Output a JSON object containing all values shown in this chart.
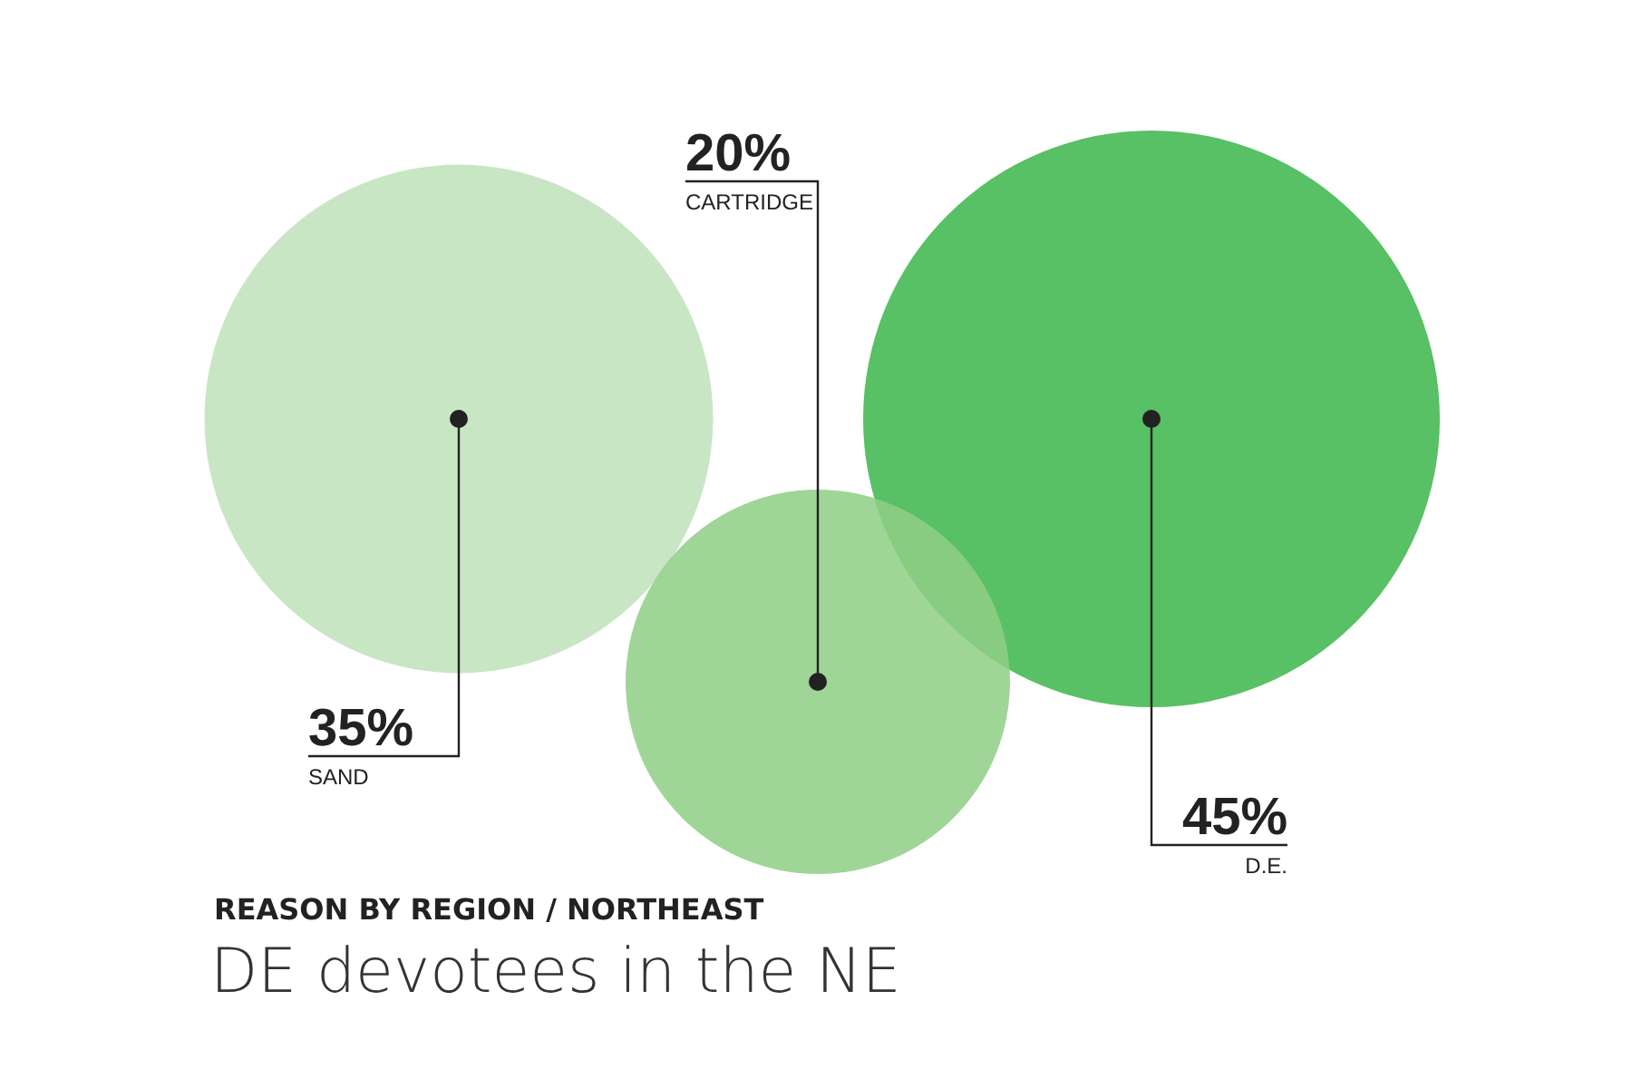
{
  "chart_data": {
    "type": "other",
    "title": "DE devotees in the NE",
    "subtitle": "REASON BY REGION / NORTHEAST",
    "categories": [
      "SAND",
      "CARTRIDGE",
      "D.E."
    ],
    "values": [
      35,
      20,
      45
    ],
    "value_labels": [
      "35%",
      "20%",
      "45%"
    ],
    "colors": [
      "#c8e6c4",
      "#8fce86",
      "#3bb54a"
    ]
  }
}
